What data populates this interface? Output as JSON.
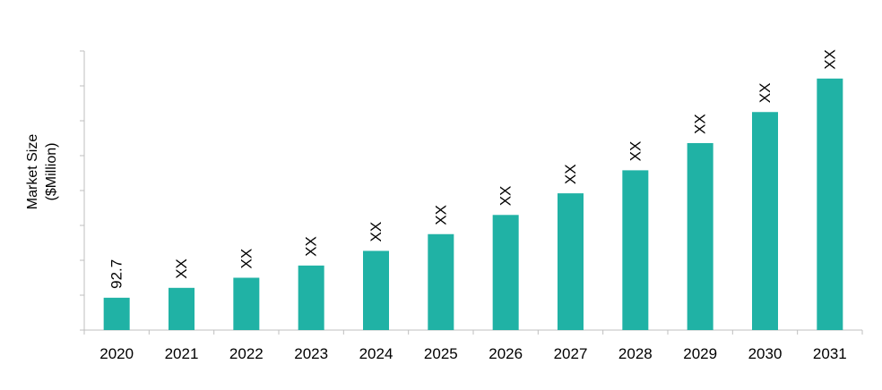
{
  "chart_data": {
    "type": "bar",
    "ylabel_line1": "Market Size",
    "ylabel_line2": "($Million)",
    "categories": [
      "2020",
      "2021",
      "2022",
      "2023",
      "2024",
      "2025",
      "2026",
      "2027",
      "2028",
      "2029",
      "2030",
      "2031"
    ],
    "values": [
      92.7,
      121,
      150,
      185,
      227,
      275,
      330,
      392,
      458,
      536,
      625,
      721
    ],
    "data_labels": [
      "92.7",
      "XX",
      "XX",
      "XX",
      "XX",
      "XX",
      "XX",
      "XX",
      "XX",
      "XX",
      "XX",
      "XX"
    ],
    "ylim": [
      0,
      800
    ],
    "grid": false,
    "legend": "none",
    "bar_color": "#20b2a5"
  }
}
